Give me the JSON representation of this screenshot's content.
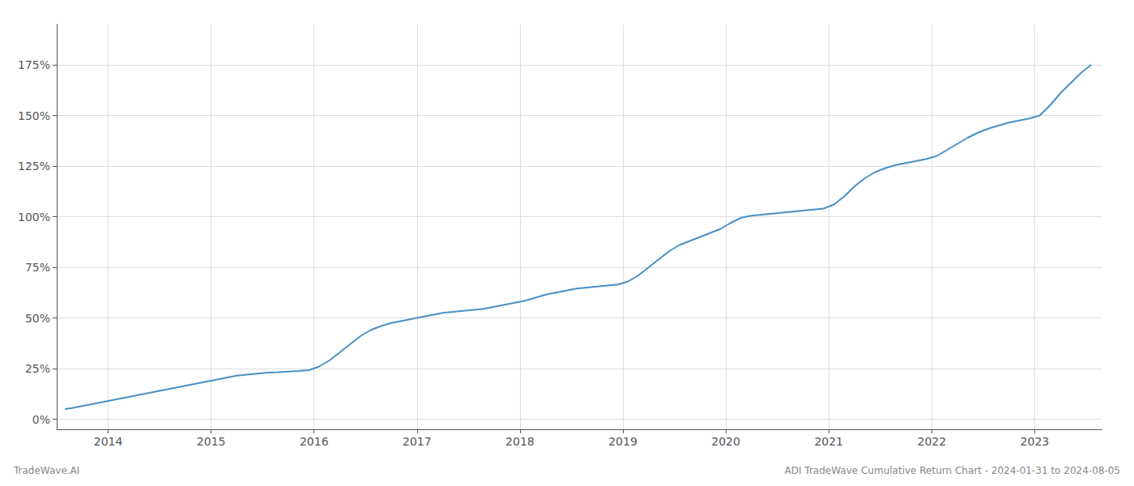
{
  "chart_data": {
    "type": "line",
    "title": "ADI TradeWave Cumulative Return Chart - 2024-01-31 to 2024-08-05",
    "annotations": [
      "TradeWave.AI"
    ],
    "color": "#4a90c4",
    "grid": true,
    "x": [
      2013.58,
      2013.65,
      2013.75,
      2013.85,
      2013.95,
      2014.05,
      2014.15,
      2014.25,
      2014.35,
      2014.45,
      2014.55,
      2014.65,
      2014.75,
      2014.85,
      2014.95,
      2015.05,
      2015.15,
      2015.25,
      2015.35,
      2015.45,
      2015.55,
      2015.65,
      2015.75,
      2015.85,
      2015.95,
      2016.05,
      2016.15,
      2016.25,
      2016.35,
      2016.45,
      2016.55,
      2016.65,
      2016.75,
      2016.85,
      2016.95,
      2017.05,
      2017.15,
      2017.25,
      2017.35,
      2017.45,
      2017.55,
      2017.65,
      2017.75,
      2017.85,
      2017.95,
      2018.05,
      2018.15,
      2018.25,
      2018.35,
      2018.45,
      2018.55,
      2018.65,
      2018.75,
      2018.85,
      2018.95,
      2019.05,
      2019.15,
      2019.25,
      2019.35,
      2019.45,
      2019.55,
      2019.65,
      2019.75,
      2019.85,
      2019.95,
      2020.05,
      2020.15,
      2020.25,
      2020.35,
      2020.45,
      2020.55,
      2020.65,
      2020.75,
      2020.85,
      2020.95,
      2021.05,
      2021.15,
      2021.25,
      2021.35,
      2021.45,
      2021.55,
      2021.65,
      2021.75,
      2021.85,
      2021.95,
      2022.05,
      2022.15,
      2022.25,
      2022.35,
      2022.45,
      2022.55,
      2022.65,
      2022.75,
      2022.85,
      2022.95,
      2023.05,
      2023.15,
      2023.25,
      2023.35,
      2023.45,
      2023.55
    ],
    "values": [
      5,
      5.5,
      6.5,
      7.5,
      8.5,
      9.5,
      10.5,
      11.5,
      12.5,
      13.5,
      14.5,
      15.5,
      16.5,
      17.5,
      18.5,
      19.5,
      20.5,
      21.5,
      22.0,
      22.5,
      23.0,
      23.2,
      23.5,
      23.8,
      24.2,
      26.0,
      29.0,
      33.0,
      37.0,
      41.0,
      44.0,
      46.0,
      47.5,
      48.5,
      49.5,
      50.5,
      51.5,
      52.5,
      53.0,
      53.5,
      54.0,
      54.5,
      55.5,
      56.5,
      57.5,
      58.5,
      60.0,
      61.5,
      62.5,
      63.5,
      64.5,
      65.0,
      65.5,
      66.0,
      66.5,
      68.0,
      71.0,
      75.0,
      79.0,
      83.0,
      86.0,
      88.0,
      90.0,
      92.0,
      94.0,
      97.0,
      99.5,
      100.5,
      101.0,
      101.5,
      102.0,
      102.5,
      103.0,
      103.5,
      104.0,
      106.0,
      110.0,
      115.0,
      119.0,
      122.0,
      124.0,
      125.5,
      126.5,
      127.5,
      128.5,
      130.0,
      133.0,
      136.0,
      139.0,
      141.5,
      143.5,
      145.0,
      146.5,
      147.5,
      148.5,
      150.0,
      155.0,
      161.0,
      166.0,
      171.0,
      175.0
    ],
    "xlim": [
      2013.5,
      2023.65
    ],
    "xticks": [
      2014,
      2015,
      2016,
      2017,
      2018,
      2019,
      2020,
      2021,
      2022,
      2023
    ],
    "ylim": [
      -5,
      195
    ],
    "yticks": [
      {
        "value": 0,
        "label": "0%"
      },
      {
        "value": 25,
        "label": "25%"
      },
      {
        "value": 50,
        "label": "50%"
      },
      {
        "value": 75,
        "label": "75%"
      },
      {
        "value": 100,
        "label": "100%"
      },
      {
        "value": 125,
        "label": "125%"
      },
      {
        "value": 150,
        "label": "150%"
      },
      {
        "value": 175,
        "label": "175%"
      }
    ]
  }
}
